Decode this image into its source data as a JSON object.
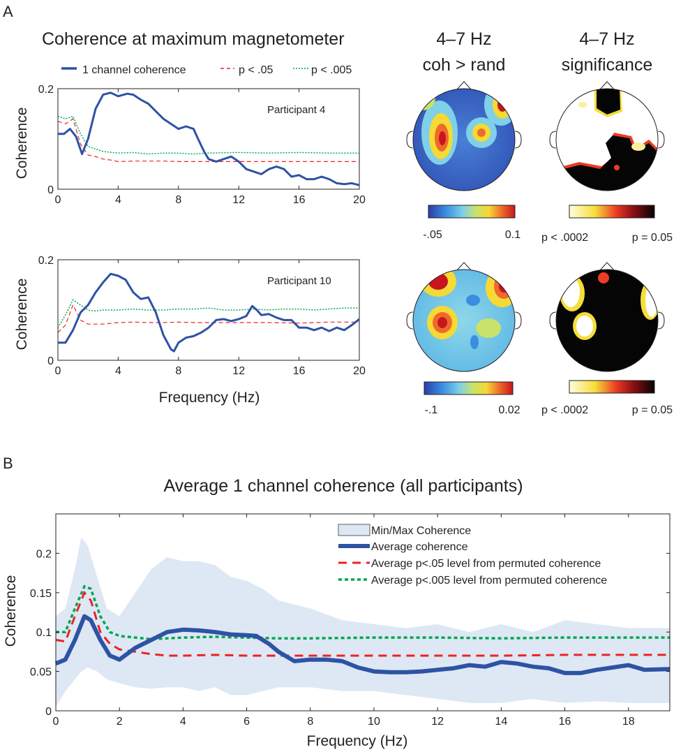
{
  "panel_a": {
    "label": "A",
    "title": "Coherence at maximum magnetometer",
    "legend": {
      "main": "1 channel coherence",
      "p05": "p < .05",
      "p005": "p < .005"
    },
    "xlabel": "Frequency (Hz)",
    "ylabel": "Coherence",
    "topo_titles": [
      {
        "line1": "4–7 Hz",
        "line2": "coh > rand"
      },
      {
        "line1": "4–7 Hz",
        "line2": "significance"
      }
    ],
    "colorbars": [
      {
        "left": "-.05",
        "right": "0.1"
      },
      {
        "left": "p < .0002",
        "right": "p = 0.05"
      },
      {
        "left": "-.1",
        "right": "0.02"
      },
      {
        "left": "p < .0002",
        "right": "p = 0.05"
      }
    ]
  },
  "panel_b": {
    "label": "B",
    "title": "Average 1 channel coherence (all participants)",
    "xlabel": "Frequency (Hz)",
    "ylabel": "Coherence",
    "legend": [
      "Min/Max Coherence",
      "Average coherence",
      "Average p<.05 level from permuted coherence",
      "Average p<.005 level from permuted coherence"
    ]
  },
  "colors": {
    "main": "#2e52a4",
    "p05": "#ed2224",
    "p005": "#00a651",
    "band": "#dde8f4"
  },
  "chart_data": [
    {
      "type": "line",
      "annotation": "Participant 4",
      "xlabel": "",
      "ylabel": "Coherence",
      "xlim": [
        0,
        20
      ],
      "ylim": [
        0,
        0.2
      ],
      "xticks": [
        0,
        4,
        8,
        12,
        16,
        20
      ],
      "yticks": [
        0,
        0.2
      ],
      "series": [
        {
          "name": "1 channel coherence",
          "style": "solid",
          "points": [
            [
              0,
              0.11
            ],
            [
              0.4,
              0.11
            ],
            [
              0.8,
              0.12
            ],
            [
              1.2,
              0.105
            ],
            [
              1.6,
              0.07
            ],
            [
              2,
              0.1
            ],
            [
              2.5,
              0.16
            ],
            [
              3,
              0.188
            ],
            [
              3.5,
              0.192
            ],
            [
              4,
              0.185
            ],
            [
              4.6,
              0.19
            ],
            [
              5,
              0.188
            ],
            [
              5.5,
              0.178
            ],
            [
              6,
              0.17
            ],
            [
              6.5,
              0.155
            ],
            [
              7,
              0.14
            ],
            [
              7.5,
              0.13
            ],
            [
              8,
              0.12
            ],
            [
              8.5,
              0.125
            ],
            [
              9,
              0.12
            ],
            [
              9.3,
              0.1
            ],
            [
              9.7,
              0.075
            ],
            [
              10,
              0.06
            ],
            [
              10.5,
              0.055
            ],
            [
              11,
              0.06
            ],
            [
              11.5,
              0.065
            ],
            [
              12,
              0.055
            ],
            [
              12.5,
              0.04
            ],
            [
              13,
              0.035
            ],
            [
              13.5,
              0.03
            ],
            [
              14,
              0.04
            ],
            [
              14.5,
              0.045
            ],
            [
              15,
              0.04
            ],
            [
              15.5,
              0.025
            ],
            [
              16,
              0.028
            ],
            [
              16.5,
              0.02
            ],
            [
              17,
              0.02
            ],
            [
              17.5,
              0.025
            ],
            [
              18,
              0.02
            ],
            [
              18.5,
              0.012
            ],
            [
              19,
              0.01
            ],
            [
              19.5,
              0.012
            ],
            [
              20,
              0.008
            ]
          ]
        },
        {
          "name": "p < .05",
          "style": "dashed",
          "points": [
            [
              0,
              0.135
            ],
            [
              0.5,
              0.13
            ],
            [
              1,
              0.14
            ],
            [
              1.5,
              0.09
            ],
            [
              2,
              0.068
            ],
            [
              2.5,
              0.065
            ],
            [
              3,
              0.06
            ],
            [
              3.5,
              0.058
            ],
            [
              4,
              0.055
            ],
            [
              5,
              0.056
            ],
            [
              6,
              0.056
            ],
            [
              7,
              0.056
            ],
            [
              8,
              0.055
            ],
            [
              9,
              0.055
            ],
            [
              10,
              0.055
            ],
            [
              12,
              0.055
            ],
            [
              14,
              0.055
            ],
            [
              16,
              0.055
            ],
            [
              18,
              0.055
            ],
            [
              20,
              0.055
            ]
          ]
        },
        {
          "name": "p < .005",
          "style": "dotted",
          "points": [
            [
              0,
              0.145
            ],
            [
              0.5,
              0.14
            ],
            [
              1,
              0.145
            ],
            [
              1.5,
              0.11
            ],
            [
              2,
              0.085
            ],
            [
              2.5,
              0.08
            ],
            [
              3,
              0.075
            ],
            [
              4,
              0.072
            ],
            [
              5,
              0.073
            ],
            [
              6,
              0.07
            ],
            [
              7,
              0.072
            ],
            [
              8,
              0.072
            ],
            [
              9,
              0.07
            ],
            [
              10,
              0.072
            ],
            [
              12,
              0.073
            ],
            [
              14,
              0.072
            ],
            [
              16,
              0.073
            ],
            [
              18,
              0.072
            ],
            [
              20,
              0.072
            ]
          ]
        }
      ]
    },
    {
      "type": "line",
      "annotation": "Participant 10",
      "xlabel": "Frequency (Hz)",
      "ylabel": "Coherence",
      "xlim": [
        0,
        20
      ],
      "ylim": [
        0,
        0.2
      ],
      "xticks": [
        0,
        4,
        8,
        12,
        16,
        20
      ],
      "yticks": [
        0,
        0.2
      ],
      "series": [
        {
          "name": "1 channel coherence",
          "style": "solid",
          "points": [
            [
              0,
              0.035
            ],
            [
              0.5,
              0.035
            ],
            [
              1,
              0.06
            ],
            [
              1.5,
              0.095
            ],
            [
              2,
              0.11
            ],
            [
              2.5,
              0.135
            ],
            [
              3,
              0.155
            ],
            [
              3.5,
              0.172
            ],
            [
              4,
              0.168
            ],
            [
              4.5,
              0.16
            ],
            [
              5,
              0.135
            ],
            [
              5.5,
              0.122
            ],
            [
              6,
              0.125
            ],
            [
              6.5,
              0.095
            ],
            [
              7,
              0.05
            ],
            [
              7.5,
              0.022
            ],
            [
              7.7,
              0.018
            ],
            [
              8,
              0.035
            ],
            [
              8.5,
              0.045
            ],
            [
              9,
              0.048
            ],
            [
              9.5,
              0.055
            ],
            [
              10,
              0.065
            ],
            [
              10.5,
              0.08
            ],
            [
              11,
              0.082
            ],
            [
              11.5,
              0.078
            ],
            [
              12,
              0.082
            ],
            [
              12.5,
              0.088
            ],
            [
              12.9,
              0.108
            ],
            [
              13.2,
              0.1
            ],
            [
              13.5,
              0.09
            ],
            [
              14,
              0.092
            ],
            [
              14.5,
              0.085
            ],
            [
              15,
              0.08
            ],
            [
              15.5,
              0.08
            ],
            [
              16,
              0.065
            ],
            [
              16.5,
              0.065
            ],
            [
              17,
              0.06
            ],
            [
              17.5,
              0.065
            ],
            [
              18,
              0.058
            ],
            [
              18.5,
              0.065
            ],
            [
              19,
              0.06
            ],
            [
              19.5,
              0.07
            ],
            [
              20,
              0.082
            ]
          ]
        },
        {
          "name": "p < .05",
          "style": "dashed",
          "points": [
            [
              0,
              0.055
            ],
            [
              0.5,
              0.07
            ],
            [
              1,
              0.11
            ],
            [
              1.5,
              0.08
            ],
            [
              2,
              0.072
            ],
            [
              3,
              0.072
            ],
            [
              4,
              0.075
            ],
            [
              5,
              0.076
            ],
            [
              6,
              0.075
            ],
            [
              7,
              0.075
            ],
            [
              8,
              0.076
            ],
            [
              9,
              0.075
            ],
            [
              10,
              0.075
            ],
            [
              12,
              0.075
            ],
            [
              14,
              0.075
            ],
            [
              16,
              0.074
            ],
            [
              18,
              0.076
            ],
            [
              20,
              0.076
            ]
          ]
        },
        {
          "name": "p < .005",
          "style": "dotted",
          "points": [
            [
              0,
              0.065
            ],
            [
              0.5,
              0.09
            ],
            [
              1,
              0.12
            ],
            [
              1.5,
              0.11
            ],
            [
              2,
              0.1
            ],
            [
              2.5,
              0.098
            ],
            [
              3,
              0.1
            ],
            [
              4,
              0.1
            ],
            [
              5,
              0.102
            ],
            [
              6,
              0.1
            ],
            [
              7,
              0.1
            ],
            [
              8,
              0.102
            ],
            [
              9,
              0.102
            ],
            [
              10,
              0.104
            ],
            [
              11,
              0.1
            ],
            [
              12,
              0.1
            ],
            [
              13,
              0.102
            ],
            [
              14,
              0.1
            ],
            [
              15,
              0.102
            ],
            [
              16,
              0.102
            ],
            [
              17,
              0.1
            ],
            [
              18,
              0.102
            ],
            [
              19,
              0.104
            ],
            [
              20,
              0.104
            ]
          ]
        }
      ]
    },
    {
      "type": "area",
      "title": "Average 1 channel coherence (all participants)",
      "xlabel": "Frequency (Hz)",
      "ylabel": "Coherence",
      "xlim": [
        0,
        19.3
      ],
      "ylim": [
        0,
        0.25
      ],
      "xticks": [
        0,
        2,
        4,
        6,
        8,
        10,
        12,
        14,
        16,
        18
      ],
      "yticks": [
        0,
        0.05,
        0.1,
        0.15,
        0.2
      ],
      "legend_position": "top-right",
      "band": {
        "name": "Min/Max Coherence",
        "x": [
          0,
          0.3,
          0.6,
          0.8,
          1.0,
          1.3,
          1.6,
          2.0,
          2.5,
          3.0,
          3.5,
          4.0,
          4.5,
          5.0,
          5.5,
          6.0,
          6.5,
          7.0,
          8.0,
          9.0,
          10.0,
          11.0,
          12.0,
          13.0,
          14.0,
          15.0,
          16.0,
          17.0,
          18.0,
          19.3
        ],
        "low": [
          0.005,
          0.025,
          0.04,
          0.05,
          0.055,
          0.05,
          0.04,
          0.035,
          0.03,
          0.028,
          0.03,
          0.03,
          0.025,
          0.03,
          0.02,
          0.02,
          0.025,
          0.03,
          0.03,
          0.025,
          0.025,
          0.02,
          0.015,
          0.01,
          0.01,
          0.015,
          0.01,
          0.012,
          0.01,
          0.01
        ],
        "high": [
          0.12,
          0.13,
          0.18,
          0.22,
          0.21,
          0.17,
          0.13,
          0.12,
          0.15,
          0.18,
          0.195,
          0.19,
          0.19,
          0.185,
          0.17,
          0.165,
          0.155,
          0.14,
          0.13,
          0.115,
          0.11,
          0.105,
          0.11,
          0.1,
          0.11,
          0.1,
          0.115,
          0.11,
          0.105,
          0.105
        ]
      },
      "series": [
        {
          "name": "Average coherence",
          "style": "solid",
          "x": [
            0,
            0.3,
            0.6,
            0.9,
            1.1,
            1.4,
            1.7,
            2.0,
            2.5,
            3.0,
            3.5,
            4.0,
            4.5,
            5.0,
            5.5,
            6.0,
            6.3,
            6.7,
            7.0,
            7.5,
            8.0,
            8.5,
            9.0,
            9.5,
            10.0,
            10.5,
            11.0,
            11.5,
            12.0,
            12.5,
            13.0,
            13.5,
            14.0,
            14.5,
            15.0,
            15.5,
            16.0,
            16.5,
            17.0,
            17.5,
            18.0,
            18.5,
            19.3
          ],
          "y": [
            0.06,
            0.065,
            0.09,
            0.12,
            0.115,
            0.09,
            0.07,
            0.065,
            0.08,
            0.09,
            0.1,
            0.103,
            0.102,
            0.1,
            0.097,
            0.096,
            0.095,
            0.085,
            0.075,
            0.063,
            0.065,
            0.065,
            0.063,
            0.055,
            0.05,
            0.049,
            0.049,
            0.05,
            0.052,
            0.054,
            0.058,
            0.056,
            0.062,
            0.06,
            0.056,
            0.054,
            0.048,
            0.048,
            0.052,
            0.055,
            0.058,
            0.052,
            0.053
          ]
        },
        {
          "name": "Average p<.05 level from permuted coherence",
          "style": "dashed",
          "x": [
            0,
            0.3,
            0.6,
            0.9,
            1.1,
            1.4,
            1.7,
            2.0,
            2.5,
            3.0,
            3.5,
            4.0,
            5.0,
            6.0,
            7.0,
            8.0,
            10.0,
            12.0,
            14.0,
            16.0,
            18.0,
            19.3
          ],
          "y": [
            0.09,
            0.088,
            0.12,
            0.15,
            0.14,
            0.1,
            0.085,
            0.078,
            0.075,
            0.072,
            0.07,
            0.07,
            0.071,
            0.07,
            0.07,
            0.07,
            0.07,
            0.07,
            0.07,
            0.071,
            0.071,
            0.071
          ]
        },
        {
          "name": "Average p<.005 level from permuted coherence",
          "style": "dotted",
          "x": [
            0,
            0.3,
            0.6,
            0.9,
            1.1,
            1.4,
            1.7,
            2.0,
            2.5,
            3.0,
            3.5,
            4.0,
            5.0,
            6.0,
            7.0,
            8.0,
            10.0,
            12.0,
            14.0,
            16.0,
            18.0,
            19.3
          ],
          "y": [
            0.1,
            0.1,
            0.13,
            0.158,
            0.155,
            0.12,
            0.1,
            0.095,
            0.093,
            0.091,
            0.092,
            0.093,
            0.094,
            0.093,
            0.092,
            0.092,
            0.093,
            0.093,
            0.092,
            0.093,
            0.093,
            0.093
          ]
        }
      ]
    }
  ]
}
